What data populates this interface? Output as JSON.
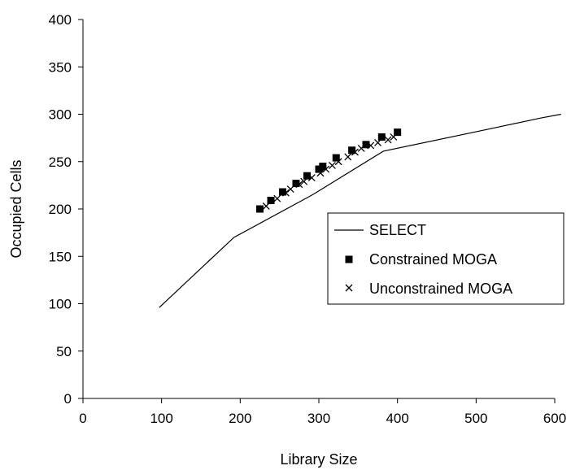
{
  "chart_data": {
    "type": "scatter",
    "title": "",
    "xlabel": "Library Size",
    "ylabel": "Occupied Cells",
    "xlim": [
      0,
      600
    ],
    "ylim": [
      0,
      400
    ],
    "xticks": [
      0,
      100,
      200,
      300,
      400,
      500,
      600
    ],
    "yticks": [
      0,
      50,
      100,
      150,
      200,
      250,
      300,
      350,
      400
    ],
    "grid": false,
    "legend_position": "center-right",
    "series": [
      {
        "name": "SELECT",
        "kind": "line",
        "color": "#000000",
        "points": [
          [
            97,
            96
          ],
          [
            192,
            170
          ],
          [
            292,
            215
          ],
          [
            382,
            261
          ],
          [
            520,
            285
          ],
          [
            582,
            296
          ],
          [
            608,
            300
          ]
        ]
      },
      {
        "name": "Constrained MOGA",
        "kind": "marker",
        "marker": "square",
        "color": "#000000",
        "points": [
          [
            225,
            200
          ],
          [
            239,
            209
          ],
          [
            254,
            218
          ],
          [
            271,
            227
          ],
          [
            285,
            235
          ],
          [
            300,
            242
          ],
          [
            305,
            245
          ],
          [
            322,
            254
          ],
          [
            342,
            262
          ],
          [
            360,
            268
          ],
          [
            380,
            276
          ],
          [
            400,
            281
          ]
        ]
      },
      {
        "name": "Unconstrained MOGA",
        "kind": "marker",
        "marker": "x",
        "color": "#000000",
        "points": [
          [
            233,
            203
          ],
          [
            247,
            211
          ],
          [
            258,
            217
          ],
          [
            264,
            221
          ],
          [
            275,
            226
          ],
          [
            281,
            229
          ],
          [
            291,
            233
          ],
          [
            302,
            238
          ],
          [
            309,
            242
          ],
          [
            317,
            246
          ],
          [
            325,
            250
          ],
          [
            337,
            255
          ],
          [
            346,
            260
          ],
          [
            354,
            264
          ],
          [
            366,
            267
          ],
          [
            375,
            270
          ],
          [
            388,
            273
          ],
          [
            395,
            276
          ]
        ]
      }
    ]
  }
}
